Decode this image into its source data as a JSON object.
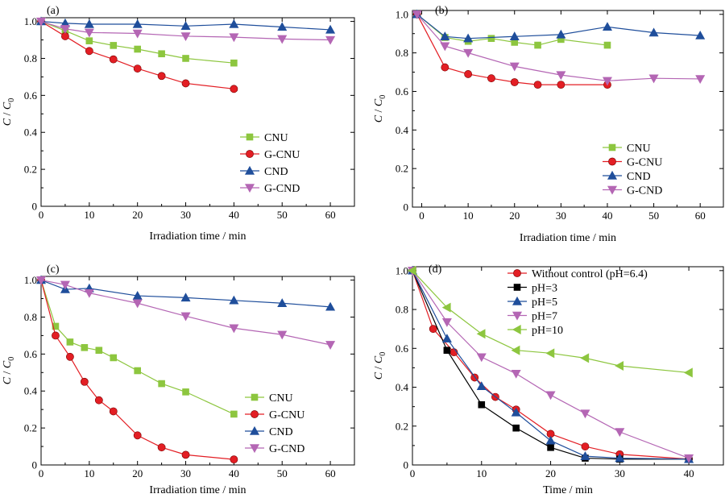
{
  "chart_data": [
    {
      "type": "line",
      "panel": "(a)",
      "xlabel": "Irradiation time / min",
      "ylabel": "C / C0",
      "xlim": [
        0,
        65
      ],
      "ylim": [
        0,
        1.02
      ],
      "xticks": [
        0,
        10,
        20,
        30,
        40,
        50,
        60
      ],
      "yticks": [
        0,
        0.2,
        0.4,
        0.6,
        0.8,
        1.0
      ],
      "legend_position": "bottom-right",
      "series": [
        {
          "name": "CNU",
          "color": "#8DC63F",
          "marker": "square",
          "x": [
            0,
            5,
            10,
            15,
            20,
            25,
            30,
            40
          ],
          "y": [
            1.0,
            0.95,
            0.895,
            0.87,
            0.85,
            0.825,
            0.8,
            0.775
          ]
        },
        {
          "name": "G-CNU",
          "color": "#E31E24",
          "marker": "circle",
          "x": [
            0,
            5,
            10,
            15,
            20,
            25,
            30,
            40
          ],
          "y": [
            1.0,
            0.92,
            0.84,
            0.795,
            0.745,
            0.705,
            0.665,
            0.635
          ]
        },
        {
          "name": "CND",
          "color": "#1F4E9B",
          "marker": "triangle-up",
          "x": [
            0,
            5,
            10,
            20,
            30,
            40,
            50,
            60
          ],
          "y": [
            1.0,
            0.99,
            0.985,
            0.985,
            0.975,
            0.985,
            0.97,
            0.955
          ]
        },
        {
          "name": "G-CND",
          "color": "#B466B4",
          "marker": "triangle-down",
          "x": [
            0,
            5,
            10,
            20,
            30,
            40,
            50,
            60
          ],
          "y": [
            1.0,
            0.96,
            0.94,
            0.935,
            0.92,
            0.915,
            0.905,
            0.9
          ]
        }
      ]
    },
    {
      "type": "line",
      "panel": "(b)",
      "xlabel": "Irradiation time / min",
      "ylabel": "C / C0",
      "xlim": [
        -2,
        65
      ],
      "ylim": [
        0,
        1.02
      ],
      "xticks": [
        0,
        10,
        20,
        30,
        40,
        50,
        60
      ],
      "yticks": [
        0,
        0.2,
        0.4,
        0.6,
        0.8,
        1.0
      ],
      "legend_position": "bottom-right",
      "series": [
        {
          "name": "CNU",
          "color": "#8DC63F",
          "marker": "square",
          "x": [
            -1,
            5,
            10,
            15,
            20,
            25,
            30,
            40
          ],
          "y": [
            1.0,
            0.88,
            0.86,
            0.875,
            0.855,
            0.84,
            0.87,
            0.84
          ]
        },
        {
          "name": "G-CNU",
          "color": "#E31E24",
          "marker": "circle",
          "x": [
            -1,
            5,
            10,
            15,
            20,
            25,
            30,
            40
          ],
          "y": [
            1.0,
            0.725,
            0.69,
            0.668,
            0.648,
            0.635,
            0.635,
            0.635
          ]
        },
        {
          "name": "CND",
          "color": "#1F4E9B",
          "marker": "triangle-up",
          "x": [
            -1,
            5,
            10,
            20,
            30,
            40,
            50,
            60
          ],
          "y": [
            1.0,
            0.885,
            0.875,
            0.885,
            0.895,
            0.935,
            0.905,
            0.89
          ]
        },
        {
          "name": "G-CND",
          "color": "#B466B4",
          "marker": "triangle-down",
          "x": [
            -1,
            5,
            10,
            20,
            30,
            40,
            50,
            60
          ],
          "y": [
            1.0,
            0.835,
            0.8,
            0.73,
            0.685,
            0.655,
            0.668,
            0.665
          ]
        }
      ]
    },
    {
      "type": "line",
      "panel": "(c)",
      "xlabel": "Irradiation time / min",
      "ylabel": "C / C0",
      "xlim": [
        0,
        65
      ],
      "ylim": [
        0,
        1.02
      ],
      "xticks": [
        0,
        10,
        20,
        30,
        40,
        50,
        60
      ],
      "yticks": [
        0,
        0.2,
        0.4,
        0.6,
        0.8,
        1.0
      ],
      "legend_position": "bottom-right",
      "series": [
        {
          "name": "CNU",
          "color": "#8DC63F",
          "marker": "square",
          "x": [
            0,
            3,
            6,
            9,
            12,
            15,
            20,
            25,
            30,
            40
          ],
          "y": [
            1.0,
            0.75,
            0.665,
            0.635,
            0.62,
            0.58,
            0.51,
            0.44,
            0.395,
            0.275
          ]
        },
        {
          "name": "G-CNU",
          "color": "#E31E24",
          "marker": "circle",
          "x": [
            0,
            3,
            6,
            9,
            12,
            15,
            20,
            25,
            30,
            40
          ],
          "y": [
            1.0,
            0.7,
            0.585,
            0.45,
            0.35,
            0.29,
            0.16,
            0.095,
            0.055,
            0.03
          ]
        },
        {
          "name": "CND",
          "color": "#1F4E9B",
          "marker": "triangle-up",
          "x": [
            0,
            5,
            10,
            20,
            30,
            40,
            50,
            60
          ],
          "y": [
            1.0,
            0.95,
            0.955,
            0.915,
            0.905,
            0.89,
            0.875,
            0.855
          ]
        },
        {
          "name": "G-CND",
          "color": "#B466B4",
          "marker": "triangle-down",
          "x": [
            0,
            5,
            10,
            20,
            30,
            40,
            50,
            60
          ],
          "y": [
            1.0,
            0.975,
            0.93,
            0.875,
            0.805,
            0.74,
            0.705,
            0.65
          ]
        }
      ]
    },
    {
      "type": "line",
      "panel": "(d)",
      "xlabel": "Time / min",
      "ylabel": "C / C0",
      "xlim": [
        0,
        45
      ],
      "ylim": [
        0,
        1.02
      ],
      "xticks": [
        0,
        10,
        20,
        30,
        40
      ],
      "yticks": [
        0,
        0.2,
        0.4,
        0.6,
        0.8,
        1.0
      ],
      "legend_position": "top-right",
      "series": [
        {
          "name": "Without control (pH=6.4)",
          "color": "#E31E24",
          "marker": "circle",
          "x": [
            0,
            3,
            6,
            9,
            12,
            15,
            20,
            25,
            30,
            40
          ],
          "y": [
            1.0,
            0.7,
            0.58,
            0.45,
            0.35,
            0.285,
            0.16,
            0.095,
            0.055,
            0.03
          ]
        },
        {
          "name": "pH=3",
          "color": "#000000",
          "marker": "square",
          "x": [
            0,
            5,
            10,
            15,
            20,
            25,
            30,
            40
          ],
          "y": [
            1.0,
            0.59,
            0.31,
            0.19,
            0.09,
            0.035,
            0.03,
            0.03
          ]
        },
        {
          "name": "pH=5",
          "color": "#1F4E9B",
          "marker": "triangle-up",
          "x": [
            0,
            5,
            10,
            15,
            20,
            25,
            30,
            40
          ],
          "y": [
            1.0,
            0.65,
            0.405,
            0.27,
            0.125,
            0.045,
            0.035,
            0.03
          ]
        },
        {
          "name": "pH=7",
          "color": "#B466B4",
          "marker": "triangle-down",
          "x": [
            0,
            5,
            10,
            15,
            20,
            25,
            30,
            40
          ],
          "y": [
            1.0,
            0.735,
            0.555,
            0.47,
            0.36,
            0.265,
            0.17,
            0.035
          ]
        },
        {
          "name": "pH=10",
          "color": "#8DC63F",
          "marker": "triangle-left",
          "x": [
            0,
            5,
            10,
            15,
            20,
            25,
            30,
            40
          ],
          "y": [
            1.0,
            0.81,
            0.675,
            0.59,
            0.575,
            0.55,
            0.51,
            0.475
          ]
        }
      ]
    }
  ]
}
